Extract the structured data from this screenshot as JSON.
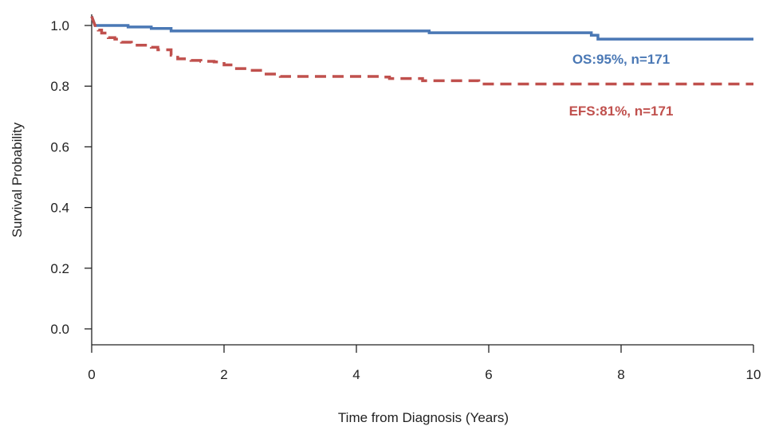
{
  "chart_data": {
    "type": "line",
    "title": "",
    "xlabel": "Time from Diagnosis (Years)",
    "ylabel": "Survival Probability",
    "xlim": [
      0,
      10
    ],
    "ylim": [
      0,
      1.0
    ],
    "xticks": [
      0,
      2,
      4,
      6,
      8,
      10
    ],
    "yticks": [
      0.0,
      0.2,
      0.4,
      0.6,
      0.8,
      1.0
    ],
    "xtick_labels": [
      "0",
      "2",
      "4",
      "6",
      "8",
      "10"
    ],
    "ytick_labels": [
      "0.0",
      "0.2",
      "0.4",
      "0.6",
      "0.8",
      "1.0"
    ],
    "grid": false,
    "legend": "none",
    "series": [
      {
        "color": "#4a78b5",
        "style": "solid",
        "label": "OS:95%, n=171",
        "step_x": [
          0,
          0.05,
          0.55,
          0.9,
          1.2,
          5.1,
          7.55,
          7.65,
          10
        ],
        "step_y": [
          1.03,
          1.0,
          0.995,
          0.99,
          0.982,
          0.976,
          0.968,
          0.955,
          0.955
        ]
      },
      {
        "color": "#c0504d",
        "style": "dashed",
        "label": "EFS:81%, n=171",
        "step_x": [
          0,
          0.05,
          0.1,
          0.15,
          0.25,
          0.35,
          0.45,
          0.6,
          0.9,
          1.0,
          1.2,
          1.3,
          1.5,
          1.65,
          1.85,
          2.0,
          2.15,
          2.35,
          2.6,
          2.85,
          3.4,
          3.9,
          4.4,
          4.5,
          5.0,
          5.85,
          10
        ],
        "step_y": [
          1.03,
          1.0,
          0.985,
          0.975,
          0.96,
          0.955,
          0.945,
          0.935,
          0.928,
          0.92,
          0.902,
          0.89,
          0.885,
          0.882,
          0.88,
          0.87,
          0.858,
          0.852,
          0.84,
          0.832,
          0.832,
          0.832,
          0.83,
          0.825,
          0.818,
          0.807,
          0.807
        ]
      }
    ]
  }
}
